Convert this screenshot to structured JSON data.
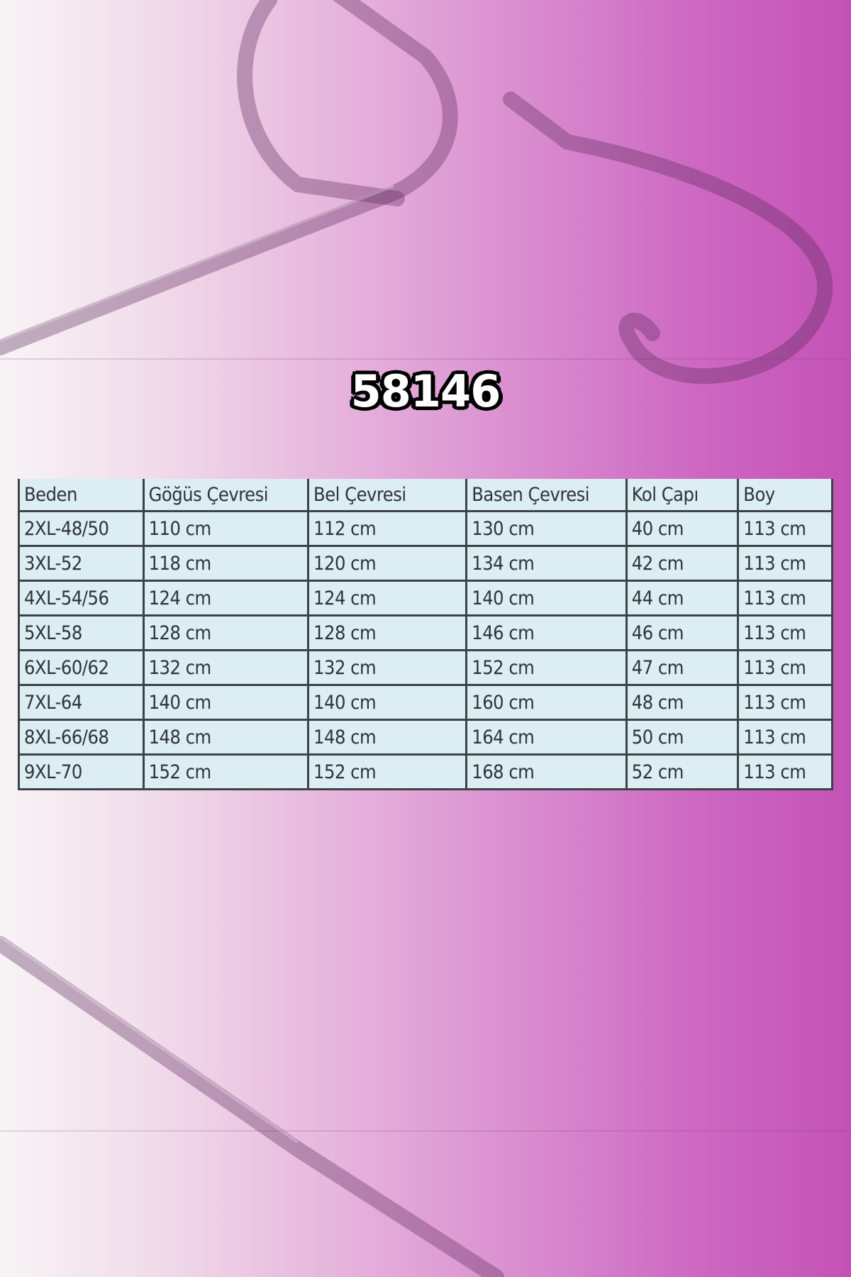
{
  "title": "58146",
  "size_table": {
    "headers": [
      "Beden",
      "Göğüs Çevresi",
      "Bel Çevresi",
      "Basen Çevresi",
      "Kol Çapı",
      "Boy"
    ],
    "rows": [
      [
        "2XL-48/50",
        "110 cm",
        "112 cm",
        "130 cm",
        "40 cm",
        "113 cm"
      ],
      [
        "3XL-52",
        "118 cm",
        "120 cm",
        "134 cm",
        "42 cm",
        "113 cm"
      ],
      [
        "4XL-54/56",
        "124 cm",
        "124 cm",
        "140 cm",
        "44 cm",
        "113 cm"
      ],
      [
        "5XL-58",
        "128 cm",
        "128 cm",
        "146 cm",
        "46 cm",
        "113 cm"
      ],
      [
        "6XL-60/62",
        "132 cm",
        "132 cm",
        "152 cm",
        "47 cm",
        "113 cm"
      ],
      [
        "7XL-64",
        "140 cm",
        "140 cm",
        "160 cm",
        "48 cm",
        "113 cm"
      ],
      [
        "8XL-66/68",
        "148 cm",
        "148 cm",
        "164 cm",
        "50 cm",
        "113 cm"
      ],
      [
        "9XL-70",
        "152 cm",
        "152 cm",
        "168 cm",
        "52 cm",
        "113 cm"
      ]
    ]
  },
  "colors": {
    "background_left": "#f8f4f6",
    "background_right": "#c452b6",
    "table_fill": "#dcedf3"
  }
}
